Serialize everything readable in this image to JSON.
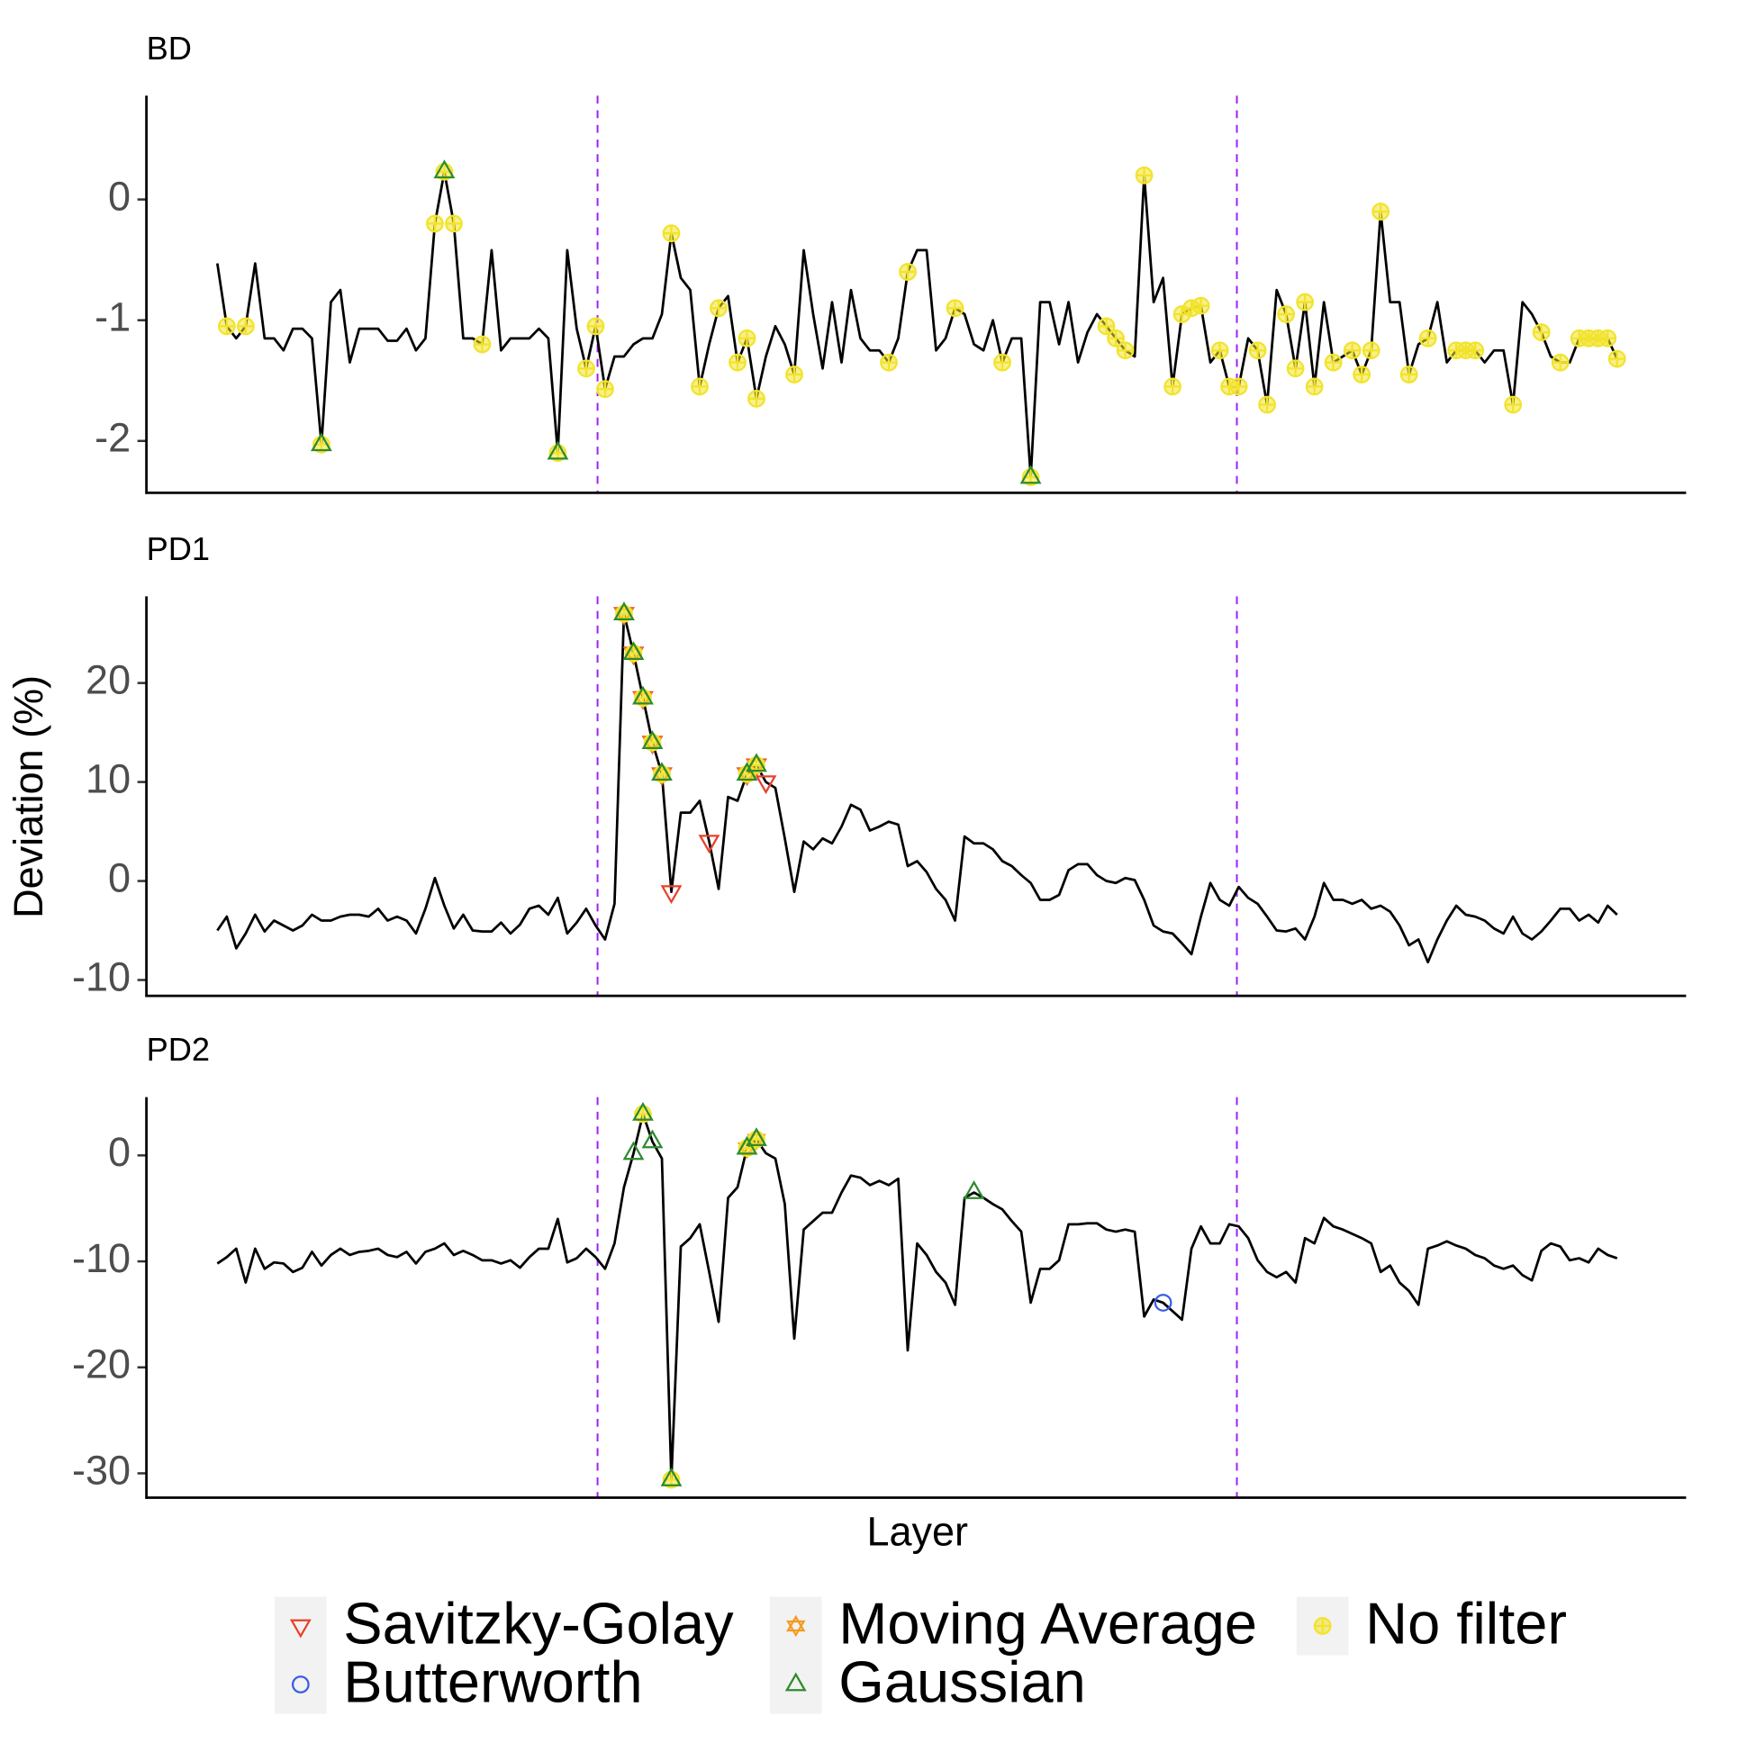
{
  "chart_data": {
    "type": "line",
    "xlabel": "Layer",
    "ylabel": "Deviation (%)",
    "xlim": [
      -7.5,
      155.3
    ],
    "vlines": [
      40.2,
      107.8
    ],
    "vline_color": "#a020f0",
    "line_color": "#000000",
    "legend": [
      {
        "name": "Savitzky-Golay",
        "color": "#e8402a",
        "shape": "triangle-down"
      },
      {
        "name": "Moving Average",
        "color": "#f39c1f",
        "shape": "star"
      },
      {
        "name": "No filter",
        "color": "#f2e32b",
        "shape": "circle-plus"
      },
      {
        "name": "Butterworth",
        "color": "#3a5ce6",
        "shape": "circle"
      },
      {
        "name": "Gaussian",
        "color": "#2e8b2e",
        "shape": "triangle-up"
      }
    ],
    "panels": [
      {
        "title": "BD",
        "ylim": [
          -2.43,
          0.86
        ],
        "yticks": [
          -2,
          -1,
          0
        ],
        "values": [
          -0.53,
          -1.05,
          -1.15,
          -1.05,
          -0.53,
          -1.15,
          -1.15,
          -1.25,
          -1.07,
          -1.07,
          -1.15,
          -2.03,
          -0.85,
          -0.75,
          -1.35,
          -1.07,
          -1.07,
          -1.07,
          -1.17,
          -1.17,
          -1.07,
          -1.25,
          -1.15,
          -0.2,
          0.23,
          -0.2,
          -1.15,
          -1.15,
          -1.2,
          -0.42,
          -1.25,
          -1.15,
          -1.15,
          -1.15,
          -1.07,
          -1.15,
          -2.1,
          -0.42,
          -1.07,
          -1.4,
          -1.05,
          -1.57,
          -1.3,
          -1.3,
          -1.2,
          -1.15,
          -1.15,
          -0.95,
          -0.28,
          -0.65,
          -0.75,
          -1.55,
          -1.2,
          -0.9,
          -0.8,
          -1.35,
          -1.15,
          -1.65,
          -1.3,
          -1.05,
          -1.2,
          -1.45,
          -0.42,
          -0.95,
          -1.4,
          -0.85,
          -1.35,
          -0.75,
          -1.15,
          -1.25,
          -1.25,
          -1.35,
          -1.15,
          -0.6,
          -0.42,
          -0.42,
          -1.25,
          -1.15,
          -0.9,
          -0.95,
          -1.2,
          -1.25,
          -1.0,
          -1.35,
          -1.15,
          -1.15,
          -2.3,
          -0.85,
          -0.85,
          -1.2,
          -0.85,
          -1.35,
          -1.1,
          -0.95,
          -1.05,
          -1.15,
          -1.25,
          -1.3,
          0.2,
          -0.85,
          -0.65,
          -1.55,
          -0.95,
          -0.9,
          -0.88,
          -1.35,
          -1.25,
          -1.55,
          -1.55,
          -1.15,
          -1.25,
          -1.7,
          -0.75,
          -0.95,
          -1.4,
          -0.85,
          -1.55,
          -0.85,
          -1.35,
          -1.3,
          -1.25,
          -1.45,
          -1.25,
          -0.1,
          -0.85,
          -0.85,
          -1.45,
          -1.2,
          -1.15,
          -0.85,
          -1.35,
          -1.25,
          -1.25,
          -1.25,
          -1.35,
          -1.25,
          -1.25,
          -1.7,
          -0.85,
          -0.95,
          -1.1,
          -1.3,
          -1.35,
          -1.35,
          -1.15,
          -1.15,
          -1.15,
          -1.15,
          -1.32
        ],
        "markers": [
          [],
          [],
          [
            1,
            3,
            11,
            23,
            24,
            25,
            28,
            36,
            39,
            40,
            41,
            48,
            51,
            53,
            55,
            56,
            57,
            61,
            71,
            73,
            78,
            83,
            86,
            94,
            95,
            96,
            98,
            101,
            102,
            103,
            104,
            106,
            107,
            108,
            110,
            111,
            113,
            114,
            115,
            116,
            118,
            120,
            121,
            122,
            123,
            126,
            128,
            131,
            132,
            133,
            137,
            140,
            142,
            144,
            145,
            146,
            147,
            148
          ],
          [],
          [
            11,
            24,
            36,
            86
          ]
        ]
      },
      {
        "title": "PD1",
        "ylim": [
          -11.6,
          28.75
        ],
        "yticks": [
          -10,
          0,
          10,
          20
        ],
        "values": [
          -5,
          -3.6,
          -6.8,
          -5.3,
          -3.4,
          -5.1,
          -4,
          -4.5,
          -5,
          -4.5,
          -3.4,
          -4,
          -4,
          -3.6,
          -3.4,
          -3.4,
          -3.6,
          -2.8,
          -4,
          -3.6,
          -4,
          -5.3,
          -2.8,
          0.3,
          -2.5,
          -4.8,
          -3.4,
          -5,
          -5.1,
          -5.1,
          -4.2,
          -5.3,
          -4.4,
          -2.8,
          -2.5,
          -3.4,
          -1.7,
          -5.3,
          -4.2,
          -2.8,
          -4.5,
          -5.9,
          -2.3,
          27,
          23,
          18.5,
          14,
          10.8,
          -1.1,
          6.9,
          6.9,
          8.1,
          4,
          -0.8,
          8.5,
          8.1,
          10.8,
          11.7,
          10,
          9.4,
          4.3,
          -1.1,
          4,
          3.2,
          4.3,
          3.8,
          5.5,
          7.7,
          7.2,
          5.1,
          5.5,
          6,
          5.7,
          1.5,
          2,
          0.9,
          -0.8,
          -1.9,
          -4,
          4.5,
          3.8,
          3.8,
          3.2,
          2,
          1.5,
          0.6,
          -0.2,
          -1.9,
          -1.9,
          -1.4,
          1.1,
          1.7,
          1.7,
          0.6,
          0,
          -0.2,
          0.3,
          0.1,
          -1.9,
          -4.5,
          -5.1,
          -5.3,
          -6.3,
          -7.4,
          -3.6,
          -0.2,
          -1.9,
          -2.5,
          -0.6,
          -1.7,
          -2.3,
          -3.6,
          -5,
          -5.1,
          -4.8,
          -5.9,
          -3.6,
          -0.2,
          -1.9,
          -1.9,
          -2.3,
          -1.9,
          -2.8,
          -2.5,
          -3.1,
          -4.5,
          -6.5,
          -5.9,
          -8.2,
          -5.9,
          -4,
          -2.5,
          -3.4,
          -3.6,
          -4,
          -4.8,
          -5.3,
          -3.6,
          -5.3,
          -5.9,
          -5.1,
          -4,
          -2.8,
          -2.8,
          -4,
          -3.4,
          -4.2,
          -2.5,
          -3.4
        ],
        "markers": [
          [
            43,
            44,
            45,
            46,
            47,
            48,
            52,
            56,
            57,
            58
          ],
          [
            43,
            44,
            45,
            46,
            47,
            56,
            57
          ],
          [
            43,
            44,
            45,
            46,
            47,
            56,
            57
          ],
          [],
          [
            43,
            44,
            45,
            46,
            47,
            56,
            57
          ]
        ]
      },
      {
        "title": "PD2",
        "ylim": [
          -32.3,
          5.5
        ],
        "yticks": [
          -30,
          -20,
          -10,
          0
        ],
        "values": [
          -10.2,
          -9.6,
          -8.8,
          -12,
          -8.8,
          -10.7,
          -10.1,
          -10.2,
          -11,
          -10.6,
          -9.1,
          -10.4,
          -9.4,
          -8.8,
          -9.4,
          -9.1,
          -9,
          -8.8,
          -9.4,
          -9.6,
          -9.1,
          -10.2,
          -9.1,
          -8.8,
          -8.3,
          -9.4,
          -9,
          -9.4,
          -9.9,
          -9.9,
          -10.2,
          -9.9,
          -10.6,
          -9.6,
          -8.8,
          -8.8,
          -6,
          -10.1,
          -9.7,
          -8.8,
          -9.6,
          -10.7,
          -8.3,
          -3,
          0.2,
          3.9,
          1.3,
          -0.3,
          -30.6,
          -8.6,
          -7.8,
          -6.5,
          -11,
          -15.7,
          -4,
          -3,
          0.7,
          1.5,
          0.2,
          -0.3,
          -4.6,
          -17.3,
          -7,
          -6.2,
          -5.4,
          -5.4,
          -3.5,
          -1.9,
          -2.1,
          -2.8,
          -2.4,
          -2.8,
          -2.2,
          -18.4,
          -8.3,
          -9.4,
          -11,
          -12,
          -14.1,
          -4,
          -3.5,
          -4,
          -4.6,
          -5.1,
          -6.2,
          -7.2,
          -13.9,
          -10.7,
          -10.7,
          -9.9,
          -6.5,
          -6.5,
          -6.4,
          -6.4,
          -7,
          -7.2,
          -7,
          -7.2,
          -15.2,
          -13.6,
          -13.9,
          -14.7,
          -15.5,
          -8.8,
          -6.7,
          -8.3,
          -8.3,
          -6.5,
          -6.7,
          -7.8,
          -9.9,
          -11,
          -11.5,
          -11,
          -12,
          -7.8,
          -8.3,
          -5.9,
          -6.7,
          -7,
          -7.4,
          -7.8,
          -8.3,
          -11,
          -10.4,
          -12,
          -12.8,
          -14.1,
          -8.8,
          -8.5,
          -8.1,
          -8.5,
          -8.8,
          -9.4,
          -9.7,
          -10.4,
          -10.7,
          -10.4,
          -11.3,
          -11.8,
          -9,
          -8.3,
          -8.6,
          -9.9,
          -9.7,
          -10.1,
          -8.8,
          -9.4,
          -9.7
        ],
        "markers": [
          [],
          [
            56,
            57
          ],
          [
            45,
            48,
            56,
            57
          ],
          [
            100
          ],
          [
            44,
            45,
            46,
            48,
            56,
            57,
            80
          ]
        ]
      }
    ]
  }
}
